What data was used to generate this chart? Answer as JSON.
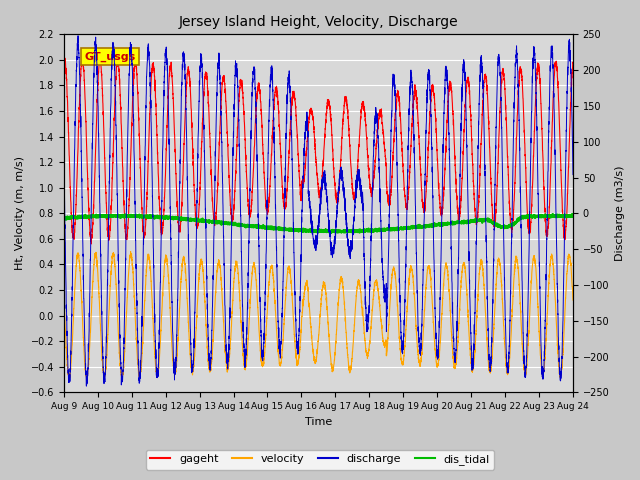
{
  "title": "Jersey Island Height, Velocity, Discharge",
  "xlabel": "Time",
  "ylabel_left": "Ht, Velocity (m, m/s)",
  "ylabel_right": "Discharge (m3/s)",
  "ylim_left": [
    -0.6,
    2.2
  ],
  "ylim_right": [
    -250,
    250
  ],
  "n_days": 15,
  "xtick_labels": [
    "Aug 9",
    "Aug 10",
    "Aug 11",
    "Aug 12",
    "Aug 13",
    "Aug 14",
    "Aug 15",
    "Aug 16",
    "Aug 17",
    "Aug 18",
    "Aug 19",
    "Aug 20",
    "Aug 21",
    "Aug 22",
    "Aug 23",
    "Aug 24"
  ],
  "legend_entries": [
    "gageht",
    "velocity",
    "discharge",
    "dis_tidal"
  ],
  "legend_colors": [
    "#ff0000",
    "#ffa500",
    "#0000ff",
    "#00cc00"
  ],
  "watermark": "GT_usgs",
  "watermark_bg": "#ffff00",
  "watermark_color": "#cc0000",
  "bg_color": "#d8d8d8",
  "grid_color": "#ffffff",
  "T1": 0.517,
  "T2": 0.535,
  "gage_mean": 1.3,
  "gage_amp1": 0.55,
  "gage_amp2": 0.15,
  "vel_amp1": 0.42,
  "vel_amp2": 0.06,
  "dis_amp1": 210,
  "dis_amp2": 25,
  "dis_tidal_mean": 0.72,
  "dis_tidal_amp": 0.06
}
